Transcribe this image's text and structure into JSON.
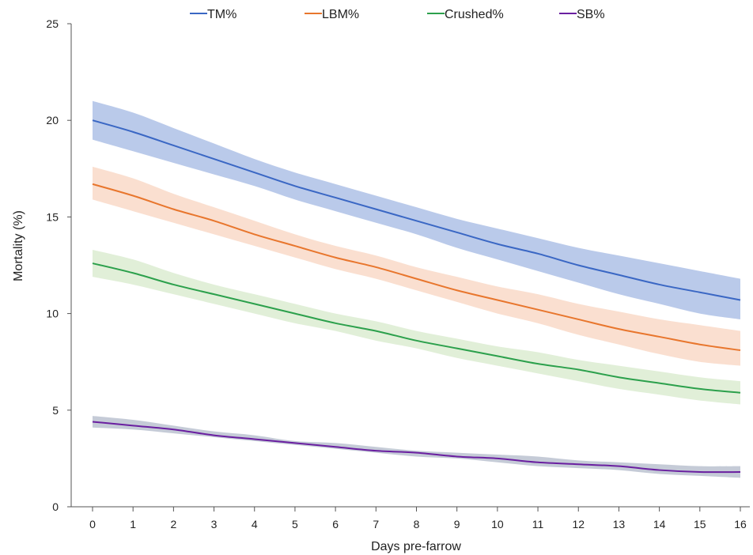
{
  "chart_data": {
    "type": "line",
    "title": "",
    "xlabel": "Days pre-farrow",
    "ylabel": "Mortality (%)",
    "xlim": [
      0,
      16
    ],
    "ylim": [
      0,
      25
    ],
    "x_ticks": [
      "0",
      "1",
      "2",
      "3",
      "4",
      "5",
      "6",
      "7",
      "8",
      "9",
      "10",
      "11",
      "12",
      "13",
      "14",
      "15",
      "16"
    ],
    "y_ticks": [
      "0",
      "5",
      "10",
      "15",
      "20",
      "25"
    ],
    "grid": false,
    "legend_position": "top",
    "x": [
      0,
      1,
      2,
      3,
      4,
      5,
      6,
      7,
      8,
      9,
      10,
      11,
      12,
      13,
      14,
      15,
      16
    ],
    "series": [
      {
        "name": "TM%",
        "color": "#3a67c4",
        "band_color": "#3a67c4",
        "values": [
          20.0,
          19.4,
          18.7,
          18.0,
          17.3,
          16.6,
          16.0,
          15.4,
          14.8,
          14.2,
          13.6,
          13.1,
          12.5,
          12.0,
          11.5,
          11.1,
          10.7
        ],
        "upper": [
          21.0,
          20.4,
          19.6,
          18.8,
          18.0,
          17.3,
          16.7,
          16.1,
          15.5,
          14.9,
          14.4,
          13.9,
          13.4,
          13.0,
          12.6,
          12.2,
          11.8
        ],
        "lower": [
          19.0,
          18.4,
          17.8,
          17.2,
          16.6,
          15.9,
          15.3,
          14.7,
          14.1,
          13.4,
          12.8,
          12.2,
          11.6,
          11.0,
          10.5,
          10.0,
          9.7
        ]
      },
      {
        "name": "LBM%",
        "color": "#e8762d",
        "band_color": "#f2a477",
        "values": [
          16.7,
          16.1,
          15.4,
          14.8,
          14.1,
          13.5,
          12.9,
          12.4,
          11.8,
          11.2,
          10.7,
          10.2,
          9.7,
          9.2,
          8.8,
          8.4,
          8.1
        ],
        "upper": [
          17.6,
          17.0,
          16.2,
          15.5,
          14.8,
          14.1,
          13.5,
          13.0,
          12.4,
          11.9,
          11.4,
          11.0,
          10.5,
          10.1,
          9.7,
          9.4,
          9.1
        ],
        "lower": [
          15.9,
          15.3,
          14.7,
          14.1,
          13.5,
          12.9,
          12.3,
          11.8,
          11.2,
          10.6,
          10.0,
          9.5,
          8.9,
          8.4,
          7.9,
          7.5,
          7.3
        ]
      },
      {
        "name": "Crushed%",
        "color": "#2ca04c",
        "band_color": "#a9d18e",
        "values": [
          12.6,
          12.1,
          11.5,
          11.0,
          10.5,
          10.0,
          9.5,
          9.1,
          8.6,
          8.2,
          7.8,
          7.4,
          7.1,
          6.7,
          6.4,
          6.1,
          5.9
        ],
        "upper": [
          13.3,
          12.8,
          12.1,
          11.5,
          11.0,
          10.5,
          10.0,
          9.6,
          9.1,
          8.7,
          8.3,
          8.0,
          7.6,
          7.3,
          7.0,
          6.7,
          6.5
        ],
        "lower": [
          11.9,
          11.5,
          11.0,
          10.5,
          10.0,
          9.5,
          9.1,
          8.6,
          8.2,
          7.7,
          7.3,
          6.9,
          6.5,
          6.1,
          5.8,
          5.5,
          5.3
        ]
      },
      {
        "name": "SB%",
        "color": "#6a1fa0",
        "band_color": "#5a6b8c",
        "values": [
          4.4,
          4.2,
          4.0,
          3.7,
          3.5,
          3.3,
          3.1,
          2.9,
          2.8,
          2.6,
          2.5,
          2.3,
          2.2,
          2.1,
          1.9,
          1.8,
          1.8
        ],
        "upper": [
          4.7,
          4.5,
          4.2,
          3.9,
          3.7,
          3.4,
          3.3,
          3.1,
          2.9,
          2.8,
          2.7,
          2.6,
          2.4,
          2.3,
          2.2,
          2.1,
          2.1
        ],
        "lower": [
          4.1,
          4.0,
          3.8,
          3.6,
          3.4,
          3.2,
          3.0,
          2.8,
          2.6,
          2.5,
          2.3,
          2.1,
          2.0,
          1.9,
          1.7,
          1.6,
          1.5
        ]
      }
    ]
  }
}
